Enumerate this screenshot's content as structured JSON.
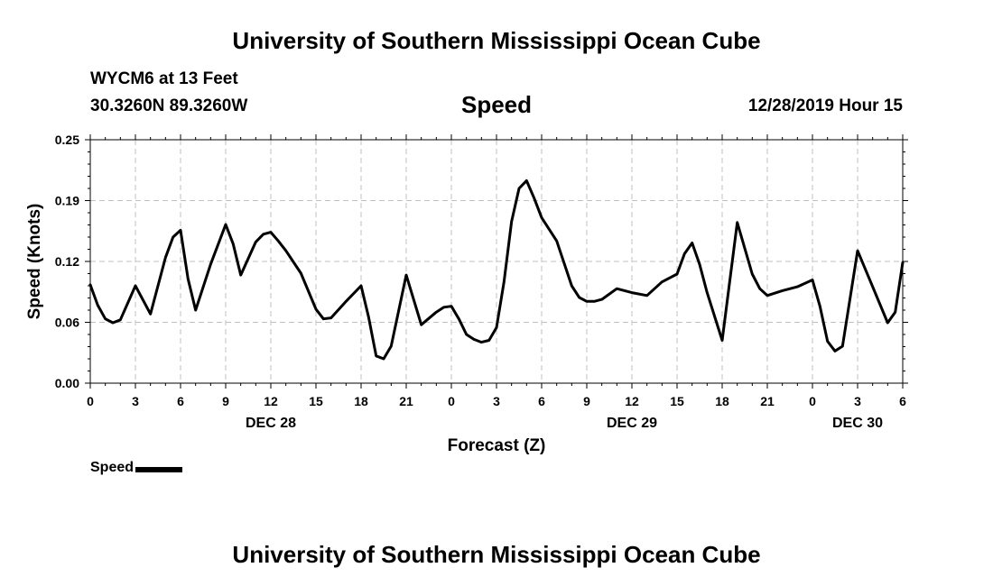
{
  "header": {
    "title": "University of Southern Mississippi Ocean Cube",
    "station": "WYCM6 at 13 Feet",
    "coords": "30.3260N 89.3260W",
    "variable": "Speed",
    "datetime": "12/28/2019 Hour 15"
  },
  "footer": {
    "title": "University of Southern Mississippi Ocean Cube"
  },
  "legend": {
    "label": "Speed",
    "color": "#000000"
  },
  "chart_data": {
    "type": "line",
    "title": "Speed",
    "xlabel": "Forecast (Z)",
    "ylabel": "Speed (Knots)",
    "xlim": [
      0,
      54
    ],
    "ylim": [
      0,
      0.25
    ],
    "y_ticks": [
      "0.00",
      "0.06",
      "0.12",
      "0.19",
      "0.25"
    ],
    "y_tick_values": [
      0,
      0.0625,
      0.125,
      0.1875,
      0.25
    ],
    "x_ticks": [
      {
        "x": 0,
        "label": "0"
      },
      {
        "x": 3,
        "label": "3"
      },
      {
        "x": 6,
        "label": "6"
      },
      {
        "x": 9,
        "label": "9"
      },
      {
        "x": 12,
        "label": "12"
      },
      {
        "x": 15,
        "label": "15"
      },
      {
        "x": 18,
        "label": "18"
      },
      {
        "x": 21,
        "label": "21"
      },
      {
        "x": 24,
        "label": "0"
      },
      {
        "x": 27,
        "label": "3"
      },
      {
        "x": 30,
        "label": "6"
      },
      {
        "x": 33,
        "label": "9"
      },
      {
        "x": 36,
        "label": "12"
      },
      {
        "x": 39,
        "label": "15"
      },
      {
        "x": 42,
        "label": "18"
      },
      {
        "x": 45,
        "label": "21"
      },
      {
        "x": 48,
        "label": "0"
      },
      {
        "x": 51,
        "label": "3"
      },
      {
        "x": 54,
        "label": "6"
      }
    ],
    "day_labels": [
      {
        "x": 12,
        "label": "DEC 28"
      },
      {
        "x": 36,
        "label": "DEC 29"
      },
      {
        "x": 51,
        "label": "DEC 30"
      }
    ],
    "grid": true,
    "series": [
      {
        "name": "Speed",
        "color": "#000000",
        "x": [
          0,
          0.5,
          1,
          1.5,
          2,
          3,
          4,
          5,
          5.5,
          6,
          6.5,
          7,
          8,
          9,
          9.5,
          10,
          11,
          11.5,
          12,
          12.5,
          13,
          14,
          15,
          15.5,
          16,
          17,
          18,
          18.5,
          19,
          19.5,
          20,
          21,
          22,
          23,
          23.5,
          24,
          24.5,
          25,
          25.5,
          26,
          26.5,
          27,
          27.5,
          28,
          28.5,
          29,
          29.5,
          30,
          31,
          32,
          32.5,
          33,
          33.5,
          34,
          35,
          36,
          37,
          38,
          39,
          39.5,
          40,
          40.5,
          41,
          42,
          43,
          44,
          44.5,
          45,
          46,
          47,
          48,
          48.5,
          49,
          49.5,
          50,
          51,
          52,
          53,
          53.5,
          54
        ],
        "values": [
          0.101,
          0.08,
          0.066,
          0.062,
          0.065,
          0.1,
          0.071,
          0.129,
          0.15,
          0.157,
          0.107,
          0.075,
          0.122,
          0.163,
          0.143,
          0.111,
          0.145,
          0.153,
          0.155,
          0.146,
          0.136,
          0.113,
          0.076,
          0.066,
          0.067,
          0.084,
          0.1,
          0.068,
          0.028,
          0.025,
          0.038,
          0.111,
          0.06,
          0.073,
          0.078,
          0.079,
          0.066,
          0.05,
          0.045,
          0.042,
          0.044,
          0.057,
          0.104,
          0.166,
          0.2,
          0.208,
          0.19,
          0.17,
          0.146,
          0.1,
          0.088,
          0.084,
          0.084,
          0.086,
          0.097,
          0.093,
          0.09,
          0.104,
          0.112,
          0.133,
          0.144,
          0.122,
          0.093,
          0.044,
          0.165,
          0.112,
          0.097,
          0.09,
          0.095,
          0.099,
          0.106,
          0.079,
          0.043,
          0.033,
          0.038,
          0.136,
          0.099,
          0.062,
          0.073,
          0.124
        ]
      }
    ]
  }
}
